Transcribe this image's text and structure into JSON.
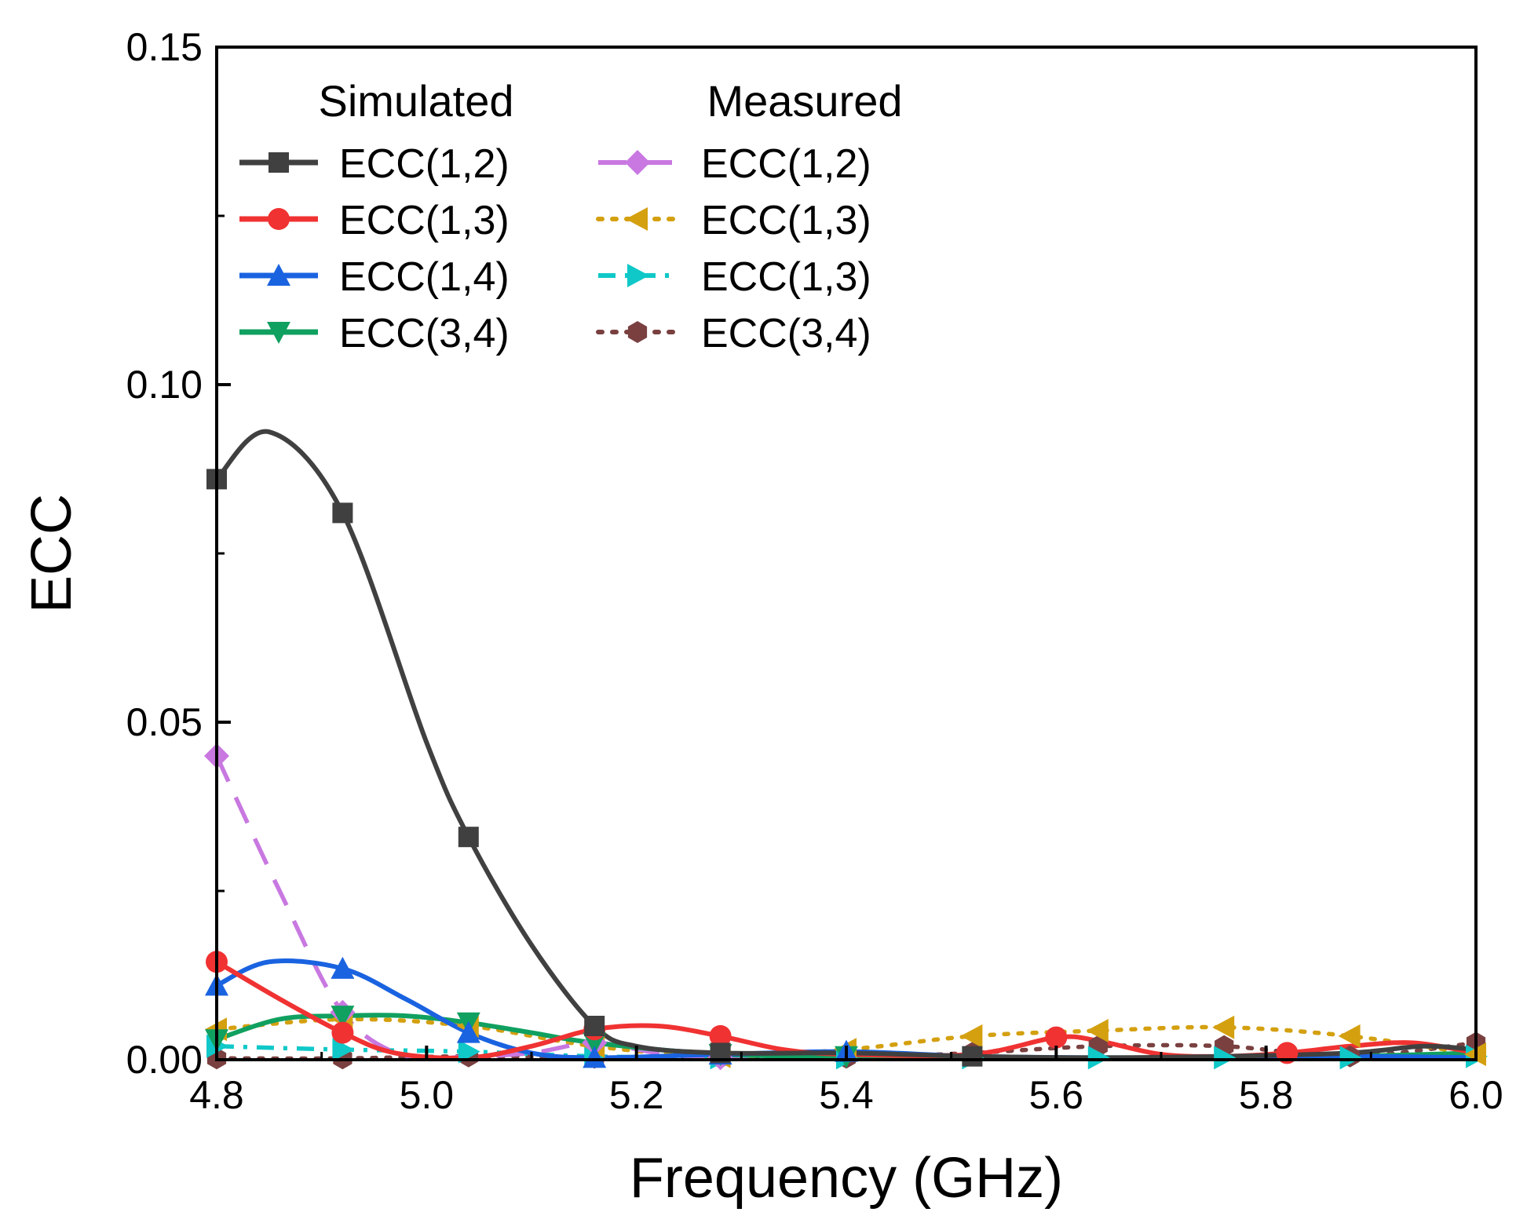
{
  "chart_data": {
    "type": "line",
    "title": "",
    "xlabel": "Frequency (GHz)",
    "ylabel": "ECC",
    "xlim": [
      4.8,
      6.0
    ],
    "ylim": [
      0.0,
      0.15
    ],
    "xticks": [
      "4.8",
      "5.0",
      "5.2",
      "5.4",
      "5.6",
      "5.8",
      "6.0"
    ],
    "yticks": [
      "0.00",
      "0.05",
      "0.10",
      "0.15"
    ],
    "grid": false,
    "legend_position": "top-left",
    "legend_groups": [
      "Simulated",
      "Measured"
    ],
    "series": [
      {
        "name": "ECC(1,2)",
        "group": "Simulated",
        "color": "#404040",
        "dash": "solid",
        "marker": "square",
        "x": [
          4.8,
          4.85,
          4.92,
          5.0,
          5.04,
          5.1,
          5.16,
          5.2,
          5.28,
          5.4,
          5.52,
          5.64,
          5.76,
          5.88,
          5.95,
          6.0
        ],
        "y": [
          0.086,
          0.093,
          0.081,
          0.047,
          0.033,
          0.017,
          0.005,
          0.002,
          0.001,
          0.001,
          0.0005,
          0.0003,
          0.0005,
          0.001,
          0.002,
          0.0015
        ]
      },
      {
        "name": "ECC(1,3)",
        "group": "Simulated",
        "color": "#f03232",
        "dash": "solid",
        "marker": "circle",
        "x": [
          4.8,
          4.86,
          4.92,
          4.97,
          5.04,
          5.1,
          5.16,
          5.22,
          5.28,
          5.34,
          5.4,
          5.52,
          5.6,
          5.64,
          5.7,
          5.76,
          5.82,
          5.88,
          5.94,
          6.0
        ],
        "y": [
          0.0145,
          0.009,
          0.004,
          0.001,
          0.0003,
          0.002,
          0.0045,
          0.005,
          0.0035,
          0.0015,
          0.0008,
          0.0008,
          0.0033,
          0.0028,
          0.0008,
          0.0005,
          0.001,
          0.002,
          0.0025,
          0.001
        ]
      },
      {
        "name": "ECC(1,4)",
        "group": "Simulated",
        "color": "#1a63e0",
        "dash": "solid",
        "marker": "triangle-up",
        "x": [
          4.8,
          4.85,
          4.92,
          4.98,
          5.04,
          5.1,
          5.16,
          5.28,
          5.4,
          5.52,
          5.64,
          5.76,
          5.88,
          6.0
        ],
        "y": [
          0.011,
          0.0145,
          0.0135,
          0.009,
          0.004,
          0.001,
          0.0003,
          0.0008,
          0.0012,
          0.0005,
          0.0003,
          0.0003,
          0.0005,
          0.0003
        ]
      },
      {
        "name": "ECC(3,4)",
        "group": "Simulated",
        "color": "#10a060",
        "dash": "solid",
        "marker": "triangle-down",
        "x": [
          4.8,
          4.86,
          4.92,
          4.98,
          5.04,
          5.1,
          5.16,
          5.28,
          5.4,
          5.52,
          5.64,
          5.76,
          5.88,
          6.0
        ],
        "y": [
          0.003,
          0.006,
          0.0065,
          0.0065,
          0.0055,
          0.004,
          0.0025,
          0.0008,
          0.0005,
          0.0003,
          0.0003,
          0.0003,
          0.0005,
          0.001
        ]
      },
      {
        "name": "ECC(1,2)",
        "group": "Measured",
        "color": "#c878e0",
        "dash": "dashed",
        "marker": "diamond",
        "x": [
          4.8,
          4.86,
          4.92,
          4.98,
          5.04,
          5.1,
          5.16,
          5.22,
          5.28,
          5.4,
          5.52,
          5.64,
          5.76,
          5.88,
          6.0
        ],
        "y": [
          0.045,
          0.025,
          0.007,
          0.0005,
          0.0005,
          0.001,
          0.0025,
          0.001,
          0.0003,
          0.0003,
          0.0003,
          0.0003,
          0.0003,
          0.0003,
          0.0003
        ]
      },
      {
        "name": "ECC(1,3)",
        "group": "Measured",
        "color": "#d4a010",
        "dash": "dotted",
        "marker": "triangle-left",
        "x": [
          4.8,
          4.92,
          5.04,
          5.16,
          5.28,
          5.4,
          5.52,
          5.64,
          5.76,
          5.88,
          6.0
        ],
        "y": [
          0.0045,
          0.006,
          0.005,
          0.002,
          0.0005,
          0.0015,
          0.0035,
          0.0043,
          0.0048,
          0.0035,
          0.0008
        ]
      },
      {
        "name": "ECC(1,3)",
        "group": "Measured",
        "color": "#10c8c8",
        "dash": "dash-dot",
        "marker": "triangle-right",
        "x": [
          4.8,
          4.92,
          5.04,
          5.16,
          5.28,
          5.4,
          5.52,
          5.64,
          5.76,
          5.88,
          6.0
        ],
        "y": [
          0.002,
          0.0015,
          0.0012,
          0.0005,
          0.0003,
          0.0003,
          0.0003,
          0.0003,
          0.0003,
          0.0003,
          0.0005
        ]
      },
      {
        "name": "ECC(3,4)",
        "group": "Measured",
        "color": "#7a4040",
        "dash": "dotted",
        "marker": "hexagon",
        "x": [
          4.8,
          4.92,
          5.04,
          5.16,
          5.28,
          5.4,
          5.52,
          5.64,
          5.76,
          5.88,
          6.0
        ],
        "y": [
          0.0002,
          0.0002,
          0.0005,
          0.0003,
          0.0003,
          0.0003,
          0.001,
          0.002,
          0.002,
          0.0005,
          0.0025
        ]
      }
    ]
  }
}
